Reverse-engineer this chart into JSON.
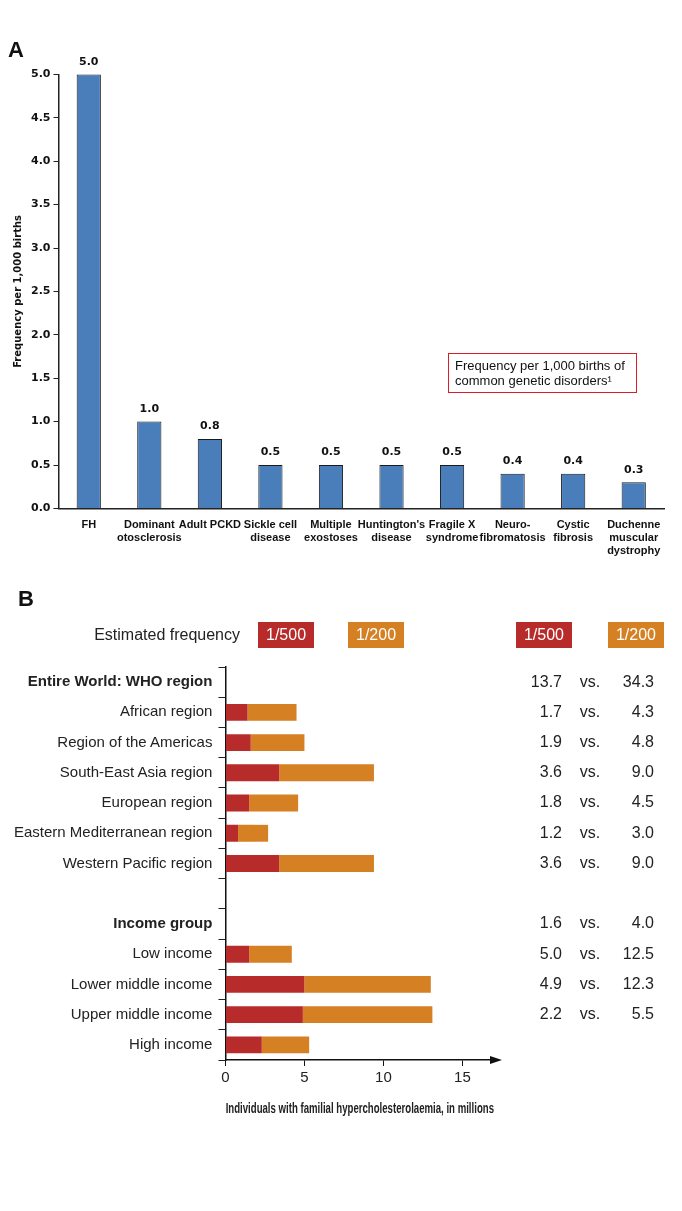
{
  "chart_data": [
    {
      "type": "bar",
      "title": "A",
      "ylabel": "Frequency per 1,000 births",
      "categories": [
        "FH",
        "Dominant otosclerosis",
        "Adult PCKD",
        "Sickle cell disease",
        "Multiple exostoses",
        "Huntington's disease",
        "Fragile X syndrome",
        "Neuro-fibromatosis",
        "Cystic fibrosis",
        "Duchenne muscular dystrophy"
      ],
      "values": [
        5.0,
        1.0,
        0.8,
        0.5,
        0.5,
        0.5,
        0.5,
        0.4,
        0.4,
        0.3
      ],
      "value_labels": [
        "5.0",
        "1.0",
        "0.8",
        "0.5",
        "0.5",
        "0.5",
        "0.5",
        "0.4",
        "0.4",
        "0.3"
      ],
      "color": "#4a7ebb",
      "ylim": [
        0,
        5
      ],
      "yticks": [
        {
          "value": 0,
          "label": "0.0"
        },
        {
          "value": 0.5,
          "label": "0.5"
        },
        {
          "value": 1,
          "label": "1.0"
        },
        {
          "value": 1.5,
          "label": "1.5"
        },
        {
          "value": 2,
          "label": "2.0"
        },
        {
          "value": 2.5,
          "label": "2.5"
        },
        {
          "value": 3,
          "label": "3.0"
        },
        {
          "value": 3.5,
          "label": "3.5"
        },
        {
          "value": 4,
          "label": "4.0"
        },
        {
          "value": 4.5,
          "label": "4.5"
        },
        {
          "value": 5,
          "label": "5.0"
        }
      ],
      "annotations": [
        "Frequency per 1,000 births of common genetic disorders¹"
      ],
      "grid": false,
      "legend": false
    },
    {
      "type": "bar",
      "orientation": "horizontal",
      "stacked": true,
      "title": "B",
      "legend_title": "Estimated frequency",
      "legend": "top",
      "grid": false,
      "categories": [
        "Entire World: WHO region",
        "African region",
        "Region of the Americas",
        "South-East Asia region",
        "European region",
        "Eastern Mediterranean region",
        "Western Pacific region",
        null,
        "Income group",
        "Low income",
        "Lower middle income",
        "Upper middle income",
        "High income"
      ],
      "series": [
        {
          "name": "1/500",
          "color": "#b82b2b",
          "values": [
            null,
            1.4,
            1.6,
            3.4,
            1.5,
            0.8,
            3.4,
            null,
            null,
            1.5,
            5.0,
            4.9,
            2.3
          ]
        },
        {
          "name": "1/200",
          "color": "#d68024",
          "values": [
            null,
            3.1,
            3.4,
            6.0,
            3.1,
            1.9,
            6.0,
            null,
            null,
            2.7,
            8.0,
            8.2,
            3.0
          ]
        }
      ],
      "xlim": [
        0,
        17
      ],
      "xticks": [
        0,
        5,
        10,
        15
      ],
      "xlabel": "Individuals with familial hypercholesterolaemia, in millions",
      "annotations": [
        "13.7 vs. 34.3",
        "1.7 vs. 4.3",
        "1.9 vs. 4.8",
        "3.6 vs. 9.0",
        "1.8 vs. 4.5",
        "1.2 vs. 3.0",
        "3.6 vs. 9.0",
        "1.6 vs. 4.0",
        "5.0 vs. 12.5",
        "4.9 vs. 12.3",
        "2.2 vs. 5.5"
      ]
    }
  ]
}
